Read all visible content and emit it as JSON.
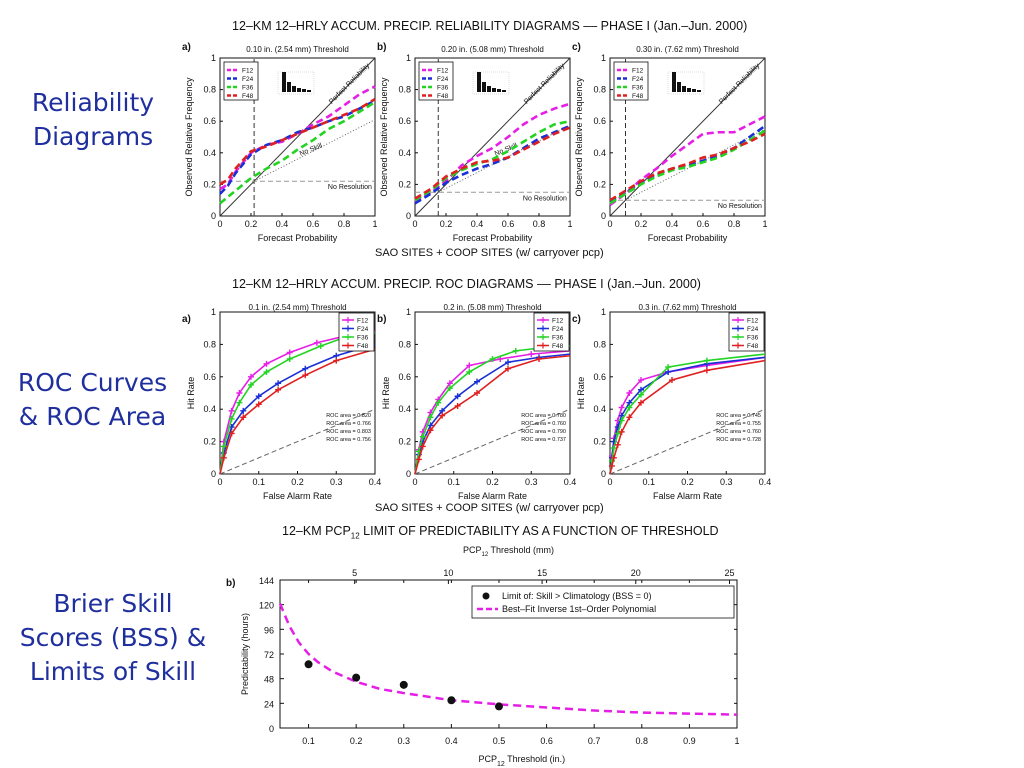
{
  "side_labels": {
    "reliability": [
      "Reliability",
      "Diagrams"
    ],
    "roc": [
      "ROC Curves",
      "& ROC Area"
    ],
    "brier": [
      "Brier Skill",
      "Scores (BSS) &",
      "Limits of Skill"
    ]
  },
  "titles": {
    "reliability": "12–KM 12–HRLY ACCUM. PRECIP. RELIABILITY DIAGRAMS –– PHASE I (Jan.–Jun. 2000)",
    "roc": "12–KM 12–HRLY ACCUM. PRECIP. ROC DIAGRAMS –– PHASE I (Jan.–Jun. 2000)",
    "pcp_main": "12–KM PCP",
    "pcp_sub": "12",
    "pcp_rest": " LIMIT OF PREDICTABILITY AS A FUNCTION OF THRESHOLD"
  },
  "captions": {
    "reliability": "SAO SITES + COOP SITES (w/ carryover pcp)",
    "roc": "SAO SITES + COOP SITES (w/ carryover pcp)"
  },
  "colors": {
    "F12": "#e61ee6",
    "F24": "#1a2fd6",
    "F36": "#22d422",
    "F48": "#e02020",
    "fit": "#e61ee6",
    "side_text": "#1f2f9e"
  },
  "chart_data": [
    {
      "type": "line",
      "id": "rel-a",
      "panel_letter": "a)",
      "title": "0.10 in. (2.54 mm) Threshold",
      "xlabel": "Forecast Probability",
      "ylabel": "Observed Relative Frequency",
      "xlim": [
        0,
        1
      ],
      "ylim": [
        0,
        1
      ],
      "xticks": [
        "0",
        "0.2",
        "0.4",
        "0.6",
        "0.8",
        "1"
      ],
      "yticks": [
        "0",
        "0.2",
        "0.4",
        "0.6",
        "0.8",
        "1"
      ],
      "legend": [
        "F12",
        "F24",
        "F36",
        "F48"
      ],
      "annotations": {
        "perfect": "Perfect Reliability",
        "noskill": "No Skill",
        "nores": "No Resolution"
      },
      "climatology": 0.22,
      "series": [
        {
          "name": "F12",
          "x": [
            0,
            0.05,
            0.1,
            0.2,
            0.3,
            0.4,
            0.5,
            0.6,
            0.7,
            0.8,
            0.9,
            1.0
          ],
          "y": [
            0.17,
            0.2,
            0.28,
            0.4,
            0.45,
            0.47,
            0.52,
            0.58,
            0.63,
            0.7,
            0.77,
            0.82
          ]
        },
        {
          "name": "F24",
          "x": [
            0,
            0.05,
            0.1,
            0.2,
            0.3,
            0.4,
            0.5,
            0.6,
            0.7,
            0.8,
            0.9,
            1.0
          ],
          "y": [
            0.14,
            0.19,
            0.27,
            0.39,
            0.45,
            0.48,
            0.53,
            0.56,
            0.6,
            0.63,
            0.68,
            0.73
          ]
        },
        {
          "name": "F36",
          "x": [
            0,
            0.05,
            0.1,
            0.2,
            0.3,
            0.4,
            0.5,
            0.6,
            0.7,
            0.8,
            0.9,
            1.0
          ],
          "y": [
            0.08,
            0.12,
            0.16,
            0.24,
            0.3,
            0.35,
            0.42,
            0.48,
            0.55,
            0.6,
            0.66,
            0.72
          ]
        },
        {
          "name": "F48",
          "x": [
            0,
            0.05,
            0.1,
            0.2,
            0.3,
            0.4,
            0.5,
            0.6,
            0.7,
            0.8,
            0.9,
            1.0
          ],
          "y": [
            0.2,
            0.23,
            0.3,
            0.41,
            0.44,
            0.48,
            0.52,
            0.56,
            0.6,
            0.64,
            0.68,
            0.74
          ]
        }
      ]
    },
    {
      "type": "line",
      "id": "rel-b",
      "panel_letter": "b)",
      "title": "0.20 in. (5.08 mm) Threshold",
      "xlabel": "Forecast Probability",
      "ylabel": "Observed Relative Frequency",
      "xlim": [
        0,
        1
      ],
      "ylim": [
        0,
        1
      ],
      "xticks": [
        "0",
        "0.2",
        "0.4",
        "0.6",
        "0.8",
        "1"
      ],
      "yticks": [
        "0",
        "0.2",
        "0.4",
        "0.6",
        "0.8",
        "1"
      ],
      "legend": [
        "F12",
        "F24",
        "F36",
        "F48"
      ],
      "annotations": {
        "perfect": "Perfect Reliability",
        "noskill": "No Skill",
        "nores": "No Resolution"
      },
      "climatology": 0.15,
      "series": [
        {
          "name": "F12",
          "x": [
            0,
            0.1,
            0.2,
            0.3,
            0.4,
            0.5,
            0.6,
            0.7,
            0.8,
            0.9,
            1.0
          ],
          "y": [
            0.09,
            0.15,
            0.22,
            0.32,
            0.38,
            0.43,
            0.5,
            0.58,
            0.64,
            0.68,
            0.71
          ]
        },
        {
          "name": "F24",
          "x": [
            0,
            0.1,
            0.2,
            0.3,
            0.4,
            0.5,
            0.6,
            0.7,
            0.8,
            0.9,
            1.0
          ],
          "y": [
            0.08,
            0.14,
            0.21,
            0.26,
            0.3,
            0.33,
            0.37,
            0.43,
            0.49,
            0.53,
            0.57
          ]
        },
        {
          "name": "F36",
          "x": [
            0,
            0.1,
            0.2,
            0.3,
            0.4,
            0.5,
            0.6,
            0.7,
            0.8,
            0.9,
            1.0
          ],
          "y": [
            0.1,
            0.16,
            0.24,
            0.29,
            0.33,
            0.36,
            0.41,
            0.47,
            0.53,
            0.58,
            0.6
          ]
        },
        {
          "name": "F48",
          "x": [
            0,
            0.1,
            0.2,
            0.3,
            0.4,
            0.5,
            0.6,
            0.7,
            0.8,
            0.9,
            1.0
          ],
          "y": [
            0.11,
            0.17,
            0.25,
            0.3,
            0.34,
            0.35,
            0.37,
            0.42,
            0.47,
            0.52,
            0.56
          ]
        }
      ]
    },
    {
      "type": "line",
      "id": "rel-c",
      "panel_letter": "c)",
      "title": "0.30 in. (7.62 mm) Threshold",
      "xlabel": "Forecast Probability",
      "ylabel": "Observed Relative Frequency",
      "xlim": [
        0,
        1
      ],
      "ylim": [
        0,
        1
      ],
      "xticks": [
        "0",
        "0.2",
        "0.4",
        "0.6",
        "0.8",
        "1"
      ],
      "yticks": [
        "0",
        "0.2",
        "0.4",
        "0.6",
        "0.8",
        "1"
      ],
      "legend": [
        "F12",
        "F24",
        "F36",
        "F48"
      ],
      "annotations": {
        "perfect": "Perfect Reliability",
        "noskill": "",
        "nores": "No Resolution"
      },
      "climatology": 0.1,
      "series": [
        {
          "name": "F12",
          "x": [
            0,
            0.1,
            0.2,
            0.3,
            0.4,
            0.5,
            0.6,
            0.7,
            0.8,
            0.9,
            1.0
          ],
          "y": [
            0.07,
            0.14,
            0.23,
            0.3,
            0.38,
            0.45,
            0.52,
            0.53,
            0.53,
            0.58,
            0.63
          ]
        },
        {
          "name": "F24",
          "x": [
            0,
            0.1,
            0.2,
            0.3,
            0.4,
            0.5,
            0.6,
            0.7,
            0.8,
            0.9,
            1.0
          ],
          "y": [
            0.09,
            0.15,
            0.21,
            0.26,
            0.3,
            0.32,
            0.35,
            0.38,
            0.43,
            0.5,
            0.57
          ]
        },
        {
          "name": "F36",
          "x": [
            0,
            0.1,
            0.2,
            0.3,
            0.4,
            0.5,
            0.6,
            0.7,
            0.8,
            0.9,
            1.0
          ],
          "y": [
            0.08,
            0.14,
            0.2,
            0.25,
            0.29,
            0.31,
            0.34,
            0.37,
            0.42,
            0.48,
            0.54
          ]
        },
        {
          "name": "F48",
          "x": [
            0,
            0.1,
            0.2,
            0.3,
            0.4,
            0.5,
            0.6,
            0.7,
            0.8,
            0.9,
            1.0
          ],
          "y": [
            0.1,
            0.16,
            0.22,
            0.27,
            0.3,
            0.33,
            0.37,
            0.39,
            0.43,
            0.47,
            0.52
          ]
        }
      ]
    },
    {
      "type": "line",
      "id": "roc-a",
      "panel_letter": "a)",
      "title": "0.1 in. (2.54 mm) Threshold",
      "xlabel": "False Alarm Rate",
      "ylabel": "Hit Rate",
      "xlim": [
        0,
        0.4
      ],
      "ylim": [
        0,
        1
      ],
      "xticks": [
        "0",
        "0.1",
        "0.2",
        "0.3",
        "0.4"
      ],
      "yticks": [
        "0",
        "0.2",
        "0.4",
        "0.6",
        "0.8",
        "1"
      ],
      "legend": [
        "F12",
        "F24",
        "F36",
        "F48"
      ],
      "roc_area": [
        "ROC area = 0.820",
        "ROC area = 0.766",
        "ROC area = 0.803",
        "ROC area = 0.756"
      ],
      "series": [
        {
          "name": "F12",
          "x": [
            0,
            0.01,
            0.03,
            0.05,
            0.08,
            0.12,
            0.18,
            0.25,
            0.32,
            0.4
          ],
          "y": [
            0,
            0.2,
            0.39,
            0.5,
            0.6,
            0.68,
            0.75,
            0.81,
            0.85,
            0.88
          ]
        },
        {
          "name": "F24",
          "x": [
            0,
            0.01,
            0.03,
            0.06,
            0.1,
            0.15,
            0.22,
            0.3,
            0.4
          ],
          "y": [
            0,
            0.13,
            0.29,
            0.39,
            0.48,
            0.56,
            0.65,
            0.73,
            0.8
          ]
        },
        {
          "name": "F36",
          "x": [
            0,
            0.01,
            0.03,
            0.05,
            0.08,
            0.12,
            0.18,
            0.26,
            0.33,
            0.4
          ],
          "y": [
            0,
            0.17,
            0.34,
            0.44,
            0.55,
            0.63,
            0.71,
            0.79,
            0.85,
            0.87
          ]
        },
        {
          "name": "F48",
          "x": [
            0,
            0.01,
            0.03,
            0.06,
            0.1,
            0.15,
            0.22,
            0.3,
            0.4
          ],
          "y": [
            0,
            0.1,
            0.25,
            0.35,
            0.43,
            0.52,
            0.61,
            0.7,
            0.77
          ]
        }
      ]
    },
    {
      "type": "line",
      "id": "roc-b",
      "panel_letter": "b)",
      "title": "0.2 in. (5.08 mm) Threshold",
      "xlabel": "False Alarm Rate",
      "ylabel": "Hit Rate",
      "xlim": [
        0,
        0.4
      ],
      "ylim": [
        0,
        1
      ],
      "xticks": [
        "0",
        "0.1",
        "0.2",
        "0.3",
        "0.4"
      ],
      "yticks": [
        "0",
        "0.2",
        "0.4",
        "0.6",
        "0.8",
        "1"
      ],
      "legend": [
        "F12",
        "F24",
        "F36",
        "F48"
      ],
      "roc_area": [
        "ROC area = 0.780",
        "ROC area = 0.760",
        "ROC area = 0.790",
        "ROC area = 0.737"
      ],
      "series": [
        {
          "name": "F12",
          "x": [
            0,
            0.01,
            0.02,
            0.04,
            0.06,
            0.09,
            0.14,
            0.22,
            0.3,
            0.4
          ],
          "y": [
            0,
            0.15,
            0.26,
            0.38,
            0.46,
            0.56,
            0.67,
            0.71,
            0.74,
            0.76
          ]
        },
        {
          "name": "F24",
          "x": [
            0,
            0.01,
            0.02,
            0.04,
            0.07,
            0.11,
            0.16,
            0.24,
            0.32,
            0.4
          ],
          "y": [
            0,
            0.12,
            0.2,
            0.3,
            0.39,
            0.48,
            0.57,
            0.69,
            0.72,
            0.74
          ]
        },
        {
          "name": "F36",
          "x": [
            0,
            0.01,
            0.02,
            0.04,
            0.06,
            0.09,
            0.14,
            0.2,
            0.26,
            0.33,
            0.4
          ],
          "y": [
            0,
            0.14,
            0.23,
            0.35,
            0.44,
            0.53,
            0.63,
            0.71,
            0.76,
            0.78,
            0.79
          ]
        },
        {
          "name": "F48",
          "x": [
            0,
            0.01,
            0.02,
            0.04,
            0.07,
            0.11,
            0.16,
            0.24,
            0.32,
            0.4
          ],
          "y": [
            0,
            0.09,
            0.17,
            0.27,
            0.36,
            0.42,
            0.5,
            0.65,
            0.71,
            0.73
          ]
        }
      ]
    },
    {
      "type": "line",
      "id": "roc-c",
      "panel_letter": "c)",
      "title": "0.3 in. (7.62 mm) Threshold",
      "xlabel": "False Alarm Rate",
      "ylabel": "Hit Rate",
      "xlim": [
        0,
        0.4
      ],
      "ylim": [
        0,
        1
      ],
      "xticks": [
        "0",
        "0.1",
        "0.2",
        "0.3",
        "0.4"
      ],
      "yticks": [
        "0",
        "0.2",
        "0.4",
        "0.6",
        "0.8",
        "1"
      ],
      "legend": [
        "F12",
        "F24",
        "F36",
        "F48"
      ],
      "roc_area": [
        "ROC area = 0.745",
        "ROC area = 0.755",
        "ROC area = 0.760",
        "ROC area = 0.728"
      ],
      "series": [
        {
          "name": "F12",
          "x": [
            0,
            0.005,
            0.01,
            0.02,
            0.03,
            0.05,
            0.08,
            0.15,
            0.25,
            0.4
          ],
          "y": [
            0,
            0.11,
            0.22,
            0.33,
            0.41,
            0.5,
            0.58,
            0.63,
            0.67,
            0.72
          ]
        },
        {
          "name": "F24",
          "x": [
            0,
            0.005,
            0.01,
            0.02,
            0.03,
            0.05,
            0.08,
            0.15,
            0.25,
            0.4
          ],
          "y": [
            0,
            0.1,
            0.2,
            0.29,
            0.36,
            0.44,
            0.52,
            0.63,
            0.68,
            0.72
          ]
        },
        {
          "name": "F36",
          "x": [
            0,
            0.005,
            0.01,
            0.02,
            0.03,
            0.05,
            0.08,
            0.15,
            0.25,
            0.4
          ],
          "y": [
            0,
            0.08,
            0.16,
            0.25,
            0.33,
            0.41,
            0.49,
            0.66,
            0.7,
            0.74
          ]
        },
        {
          "name": "F48",
          "x": [
            0,
            0.005,
            0.01,
            0.02,
            0.03,
            0.05,
            0.08,
            0.16,
            0.25,
            0.4
          ],
          "y": [
            0,
            0.05,
            0.1,
            0.18,
            0.26,
            0.35,
            0.44,
            0.58,
            0.64,
            0.7
          ]
        }
      ]
    },
    {
      "type": "scatter",
      "id": "bss",
      "panel_letter": "b)",
      "xlabel_main": "PCP",
      "xlabel_sub": "12",
      "xlabel_rest": " Threshold (in.)",
      "top_xlabel_main": "PCP",
      "top_xlabel_sub": "12",
      "top_xlabel_rest": " Threshold (mm)",
      "ylabel": "Predictability (hours)",
      "xlim": [
        0.04,
        1.0
      ],
      "ylim": [
        0,
        144
      ],
      "xticks": [
        "0.1",
        "0.2",
        "0.3",
        "0.4",
        "0.5",
        "0.6",
        "0.7",
        "0.8",
        "0.9",
        "1"
      ],
      "yticks": [
        "0",
        "24",
        "48",
        "72",
        "96",
        "120",
        "144"
      ],
      "top_xticks": [
        "5",
        "10",
        "15",
        "20",
        "25"
      ],
      "legend": [
        "Limit of: Skill > Climatology (BSS = 0)",
        "Best–Fit Inverse 1st–Order Polynomial"
      ],
      "series": [
        {
          "name": "Limit of: Skill > Climatology (BSS = 0)",
          "x": [
            0.1,
            0.2,
            0.3,
            0.4,
            0.5
          ],
          "y": [
            62,
            49,
            42,
            27,
            21
          ]
        },
        {
          "name": "Best–Fit Inverse 1st–Order Polynomial",
          "x": [
            0.04,
            0.06,
            0.08,
            0.1,
            0.12,
            0.15,
            0.2,
            0.25,
            0.3,
            0.4,
            0.5,
            0.6,
            0.7,
            0.8,
            0.9,
            1.0
          ],
          "y": [
            121,
            99,
            83,
            72,
            64,
            55,
            45,
            38,
            34,
            27,
            23,
            20,
            17,
            15,
            14,
            13
          ]
        }
      ]
    }
  ]
}
